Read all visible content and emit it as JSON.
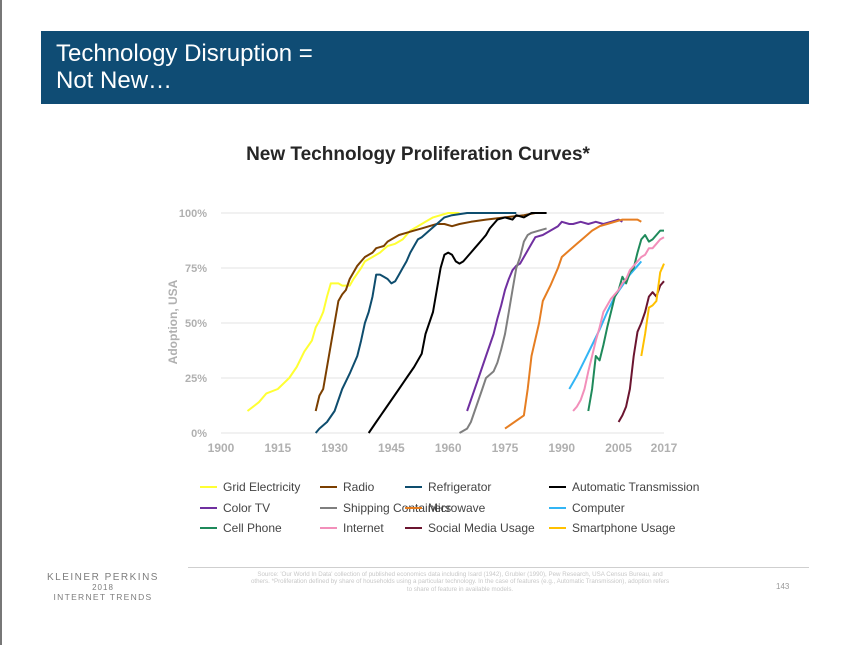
{
  "slide": {
    "title": "Technology Disruption =\nNot New…",
    "page_number": "143"
  },
  "brand": {
    "line1": "KLEINER PERKINS",
    "line2": "2018",
    "line3": "INTERNET TRENDS"
  },
  "source_note": "Source: 'Our World In Data' collection of published economics data including Isard (1942), Grubler (1990), Pew Research, USA Census Bureau, and others. *Proliferation defined by share of households using a particular technology. In the case of features (e.g., Automatic Transmission), adoption refers to share of feature in available models.",
  "chart_data": {
    "type": "line",
    "title": "New Technology Proliferation Curves*",
    "xlabel": "",
    "ylabel": "Adoption, USA",
    "xlim": [
      1900,
      2017
    ],
    "ylim": [
      0,
      100
    ],
    "x_ticks": [
      1900,
      1915,
      1930,
      1945,
      1960,
      1975,
      1990,
      2005,
      2017
    ],
    "y_ticks": [
      {
        "value": 0,
        "label": "0%"
      },
      {
        "value": 25,
        "label": "25%"
      },
      {
        "value": 50,
        "label": "50%"
      },
      {
        "value": 75,
        "label": "75%"
      },
      {
        "value": 100,
        "label": "100%"
      }
    ],
    "grid": true,
    "legend_position": "bottom",
    "series": [
      {
        "name": "Grid Electricity",
        "color": "#ffff33",
        "points": [
          [
            1907,
            10
          ],
          [
            1910,
            14
          ],
          [
            1912,
            18
          ],
          [
            1915,
            20
          ],
          [
            1918,
            25
          ],
          [
            1920,
            30
          ],
          [
            1922,
            37
          ],
          [
            1924,
            42
          ],
          [
            1925,
            48
          ],
          [
            1926,
            51
          ],
          [
            1927,
            55
          ],
          [
            1928,
            62
          ],
          [
            1929,
            68
          ],
          [
            1931,
            68
          ],
          [
            1932,
            67
          ],
          [
            1934,
            67
          ],
          [
            1935,
            70
          ],
          [
            1937,
            75
          ],
          [
            1938,
            78
          ],
          [
            1940,
            80
          ],
          [
            1942,
            82
          ],
          [
            1944,
            85
          ],
          [
            1946,
            86
          ],
          [
            1948,
            88
          ],
          [
            1950,
            92
          ],
          [
            1952,
            94
          ],
          [
            1954,
            96
          ],
          [
            1956,
            98
          ],
          [
            1958,
            99
          ],
          [
            1960,
            100
          ],
          [
            1963,
            100
          ]
        ]
      },
      {
        "name": "Radio",
        "color": "#7b3f00",
        "points": [
          [
            1925,
            10
          ],
          [
            1926,
            17
          ],
          [
            1927,
            20
          ],
          [
            1928,
            30
          ],
          [
            1929,
            40
          ],
          [
            1930,
            50
          ],
          [
            1931,
            60
          ],
          [
            1932,
            63
          ],
          [
            1933,
            65
          ],
          [
            1934,
            70
          ],
          [
            1935,
            73
          ],
          [
            1936,
            76
          ],
          [
            1937,
            78
          ],
          [
            1938,
            80
          ],
          [
            1940,
            82
          ],
          [
            1941,
            84
          ],
          [
            1943,
            85
          ],
          [
            1944,
            87
          ],
          [
            1945,
            88
          ],
          [
            1947,
            90
          ],
          [
            1949,
            91
          ],
          [
            1951,
            92
          ],
          [
            1953,
            93
          ],
          [
            1955,
            94
          ],
          [
            1957,
            95
          ],
          [
            1959,
            95
          ],
          [
            1961,
            94
          ],
          [
            1963,
            95
          ],
          [
            1966,
            96
          ],
          [
            1970,
            97
          ],
          [
            1975,
            98
          ],
          [
            1980,
            99
          ],
          [
            1983,
            100
          ]
        ]
      },
      {
        "name": "Refrigerator",
        "color": "#0e4d6e",
        "points": [
          [
            1925,
            0
          ],
          [
            1926,
            2
          ],
          [
            1928,
            5
          ],
          [
            1930,
            10
          ],
          [
            1932,
            20
          ],
          [
            1934,
            27
          ],
          [
            1936,
            35
          ],
          [
            1937,
            42
          ],
          [
            1938,
            50
          ],
          [
            1939,
            55
          ],
          [
            1940,
            62
          ],
          [
            1941,
            72
          ],
          [
            1942,
            72
          ],
          [
            1943,
            71
          ],
          [
            1944,
            70
          ],
          [
            1945,
            68
          ],
          [
            1946,
            69
          ],
          [
            1947,
            72
          ],
          [
            1948,
            75
          ],
          [
            1949,
            78
          ],
          [
            1950,
            82
          ],
          [
            1951,
            85
          ],
          [
            1952,
            88
          ],
          [
            1953,
            89
          ],
          [
            1955,
            92
          ],
          [
            1957,
            95
          ],
          [
            1959,
            98
          ],
          [
            1961,
            99
          ],
          [
            1965,
            100
          ],
          [
            1972,
            100
          ],
          [
            1978,
            100
          ]
        ]
      },
      {
        "name": "Automatic Transmission",
        "color": "#000000",
        "points": [
          [
            1939,
            0
          ],
          [
            1941,
            5
          ],
          [
            1943,
            10
          ],
          [
            1945,
            15
          ],
          [
            1947,
            20
          ],
          [
            1949,
            25
          ],
          [
            1951,
            30
          ],
          [
            1953,
            36
          ],
          [
            1954,
            45
          ],
          [
            1956,
            55
          ],
          [
            1957,
            65
          ],
          [
            1958,
            75
          ],
          [
            1959,
            81
          ],
          [
            1960,
            82
          ],
          [
            1961,
            81
          ],
          [
            1962,
            78
          ],
          [
            1963,
            77
          ],
          [
            1964,
            78
          ],
          [
            1965,
            80
          ],
          [
            1966,
            82
          ],
          [
            1967,
            84
          ],
          [
            1968,
            86
          ],
          [
            1969,
            88
          ],
          [
            1970,
            90
          ],
          [
            1971,
            93
          ],
          [
            1972,
            95
          ],
          [
            1973,
            97
          ],
          [
            1975,
            98
          ],
          [
            1977,
            97
          ],
          [
            1978,
            99
          ],
          [
            1980,
            98
          ],
          [
            1982,
            100
          ],
          [
            1986,
            100
          ]
        ]
      },
      {
        "name": "Color TV",
        "color": "#7030a0",
        "points": [
          [
            1965,
            10
          ],
          [
            1966,
            15
          ],
          [
            1968,
            25
          ],
          [
            1970,
            35
          ],
          [
            1971,
            40
          ],
          [
            1972,
            45
          ],
          [
            1973,
            52
          ],
          [
            1974,
            58
          ],
          [
            1975,
            65
          ],
          [
            1976,
            70
          ],
          [
            1977,
            74
          ],
          [
            1978,
            76
          ],
          [
            1979,
            77
          ],
          [
            1980,
            80
          ],
          [
            1981,
            83
          ],
          [
            1982,
            86
          ],
          [
            1983,
            89
          ],
          [
            1985,
            90
          ],
          [
            1987,
            92
          ],
          [
            1989,
            94
          ],
          [
            1990,
            96
          ],
          [
            1992,
            95
          ],
          [
            1993,
            95
          ],
          [
            1995,
            96
          ],
          [
            1997,
            95
          ],
          [
            1999,
            96
          ],
          [
            2001,
            95
          ],
          [
            2003,
            96
          ],
          [
            2005,
            97
          ],
          [
            2006,
            96
          ]
        ]
      },
      {
        "name": "Shipping Containers",
        "color": "#7f7f7f",
        "points": [
          [
            1963,
            0
          ],
          [
            1965,
            2
          ],
          [
            1966,
            5
          ],
          [
            1967,
            10
          ],
          [
            1968,
            15
          ],
          [
            1969,
            20
          ],
          [
            1970,
            25
          ],
          [
            1972,
            28
          ],
          [
            1973,
            32
          ],
          [
            1974,
            38
          ],
          [
            1975,
            45
          ],
          [
            1976,
            55
          ],
          [
            1977,
            65
          ],
          [
            1978,
            75
          ],
          [
            1979,
            80
          ],
          [
            1980,
            87
          ],
          [
            1981,
            90
          ],
          [
            1982,
            91
          ],
          [
            1984,
            92
          ],
          [
            1986,
            93
          ]
        ]
      },
      {
        "name": "Microwave",
        "color": "#e67e22",
        "points": [
          [
            1975,
            2
          ],
          [
            1980,
            8
          ],
          [
            1981,
            20
          ],
          [
            1982,
            35
          ],
          [
            1984,
            50
          ],
          [
            1985,
            60
          ],
          [
            1987,
            67
          ],
          [
            1989,
            75
          ],
          [
            1990,
            80
          ],
          [
            1992,
            83
          ],
          [
            1994,
            86
          ],
          [
            1996,
            89
          ],
          [
            1998,
            92
          ],
          [
            2000,
            94
          ],
          [
            2002,
            95
          ],
          [
            2004,
            96
          ],
          [
            2006,
            97
          ],
          [
            2008,
            97
          ],
          [
            2010,
            97
          ],
          [
            2011,
            96
          ]
        ]
      },
      {
        "name": "Computer",
        "color": "#33b5f5",
        "points": [
          [
            1992,
            20
          ],
          [
            1994,
            26
          ],
          [
            1996,
            33
          ],
          [
            1998,
            40
          ],
          [
            2000,
            47
          ],
          [
            2002,
            55
          ],
          [
            2004,
            62
          ],
          [
            2006,
            67
          ],
          [
            2008,
            72
          ],
          [
            2010,
            76
          ],
          [
            2011,
            78
          ]
        ]
      },
      {
        "name": "Cell Phone",
        "color": "#1f8a5b",
        "points": [
          [
            1997,
            10
          ],
          [
            1998,
            20
          ],
          [
            1999,
            35
          ],
          [
            2000,
            33
          ],
          [
            2001,
            40
          ],
          [
            2002,
            48
          ],
          [
            2003,
            55
          ],
          [
            2004,
            62
          ],
          [
            2005,
            65
          ],
          [
            2006,
            71
          ],
          [
            2007,
            68
          ],
          [
            2008,
            73
          ],
          [
            2009,
            75
          ],
          [
            2010,
            82
          ],
          [
            2011,
            88
          ],
          [
            2012,
            90
          ],
          [
            2013,
            87
          ],
          [
            2014,
            88
          ],
          [
            2015,
            90
          ],
          [
            2016,
            92
          ],
          [
            2017,
            92
          ]
        ]
      },
      {
        "name": "Internet",
        "color": "#f28fba",
        "points": [
          [
            1993,
            10
          ],
          [
            1994,
            12
          ],
          [
            1995,
            15
          ],
          [
            1996,
            20
          ],
          [
            1997,
            28
          ],
          [
            1998,
            35
          ],
          [
            1999,
            42
          ],
          [
            2000,
            48
          ],
          [
            2001,
            55
          ],
          [
            2002,
            58
          ],
          [
            2003,
            61
          ],
          [
            2004,
            63
          ],
          [
            2005,
            65
          ],
          [
            2006,
            68
          ],
          [
            2007,
            70
          ],
          [
            2008,
            74
          ],
          [
            2009,
            76
          ],
          [
            2010,
            78
          ],
          [
            2011,
            80
          ],
          [
            2012,
            81
          ],
          [
            2013,
            84
          ],
          [
            2014,
            84
          ],
          [
            2015,
            86
          ],
          [
            2016,
            88
          ],
          [
            2017,
            89
          ]
        ]
      },
      {
        "name": "Social Media Usage",
        "color": "#6b1530",
        "points": [
          [
            2005,
            5
          ],
          [
            2006,
            8
          ],
          [
            2007,
            12
          ],
          [
            2008,
            20
          ],
          [
            2009,
            35
          ],
          [
            2010,
            46
          ],
          [
            2011,
            50
          ],
          [
            2012,
            55
          ],
          [
            2013,
            62
          ],
          [
            2014,
            64
          ],
          [
            2015,
            62
          ],
          [
            2016,
            67
          ],
          [
            2017,
            69
          ]
        ]
      },
      {
        "name": "Smartphone Usage",
        "color": "#ffc000",
        "points": [
          [
            2011,
            35
          ],
          [
            2012,
            45
          ],
          [
            2013,
            57
          ],
          [
            2014,
            58
          ],
          [
            2015,
            60
          ],
          [
            2016,
            73
          ],
          [
            2017,
            77
          ]
        ]
      }
    ]
  }
}
